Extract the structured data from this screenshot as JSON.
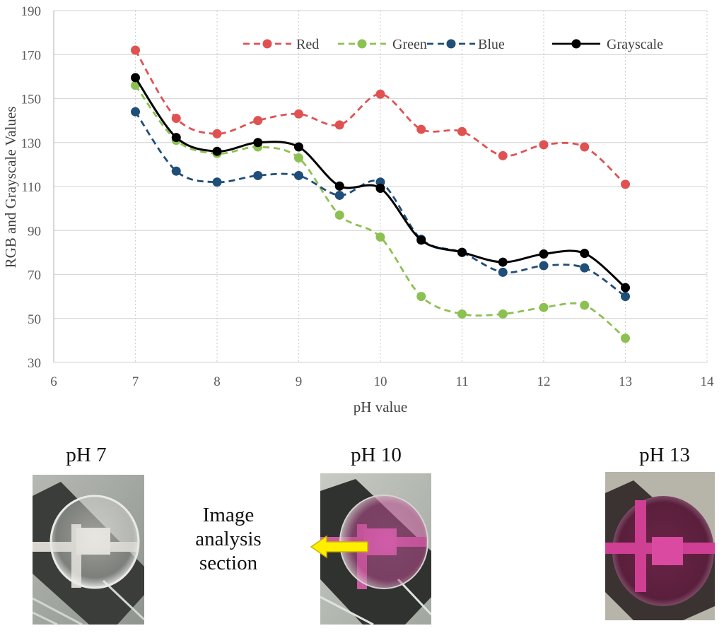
{
  "chart_data": {
    "type": "line",
    "title": "",
    "xlabel": "pH value",
    "ylabel": "RGB and Grayscale Values",
    "xlim": [
      6,
      14
    ],
    "ylim": [
      30,
      190
    ],
    "x_ticks": [
      "6",
      "7",
      "8",
      "9",
      "10",
      "11",
      "12",
      "13",
      "14"
    ],
    "y_ticks": [
      "30",
      "50",
      "70",
      "90",
      "110",
      "130",
      "150",
      "170",
      "190"
    ],
    "x": [
      7,
      7.5,
      8,
      8.5,
      9,
      9.5,
      10,
      10.5,
      11,
      11.5,
      12,
      12.5,
      13
    ],
    "legend_position": "top-right",
    "series": [
      {
        "name": "Red",
        "color": "#e05252",
        "style": "dashed",
        "values": [
          172,
          141,
          134,
          140,
          143,
          138,
          152,
          136,
          135,
          124,
          129,
          128,
          111
        ]
      },
      {
        "name": "Green",
        "color": "#8cc152",
        "style": "dashed",
        "values": [
          156,
          131,
          125,
          128,
          123,
          97,
          87,
          60,
          52,
          52,
          55,
          56,
          41
        ]
      },
      {
        "name": "Blue",
        "color": "#1f4e79",
        "style": "dashed",
        "values": [
          144,
          117,
          112,
          115,
          115,
          106,
          112,
          86,
          80,
          71,
          74,
          73,
          60
        ]
      },
      {
        "name": "Grayscale",
        "color": "#000000",
        "style": "solid",
        "values": [
          159.5,
          132.3,
          126,
          130,
          128,
          110.2,
          109.2,
          85.6,
          80.1,
          75.6,
          79.3,
          79.6,
          64
        ]
      }
    ]
  },
  "photos": [
    {
      "title": "pH 7",
      "tint": "clear"
    },
    {
      "title": "pH 10",
      "tint": "light-magenta"
    },
    {
      "title": "pH 13",
      "tint": "dark-magenta"
    }
  ],
  "annotation": {
    "lines": [
      "Image",
      "analysis",
      "section"
    ],
    "arrow_color": "#ffee00"
  }
}
